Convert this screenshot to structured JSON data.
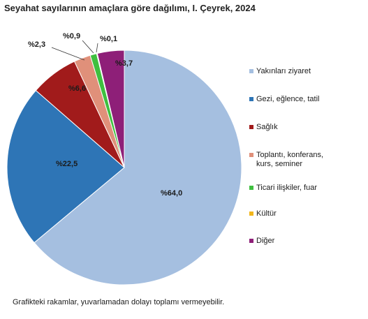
{
  "chart_data": {
    "type": "pie",
    "title": "Seyahat sayılarının amaçlara göre dağılımı, I. Çeyrek, 2024",
    "start_angle_deg": 0,
    "direction": "clockwise",
    "legend_position": "right",
    "slices": [
      {
        "name": "Yakınları ziyaret",
        "value": 64.0,
        "label": "%64,0",
        "color": "#a5bfe0"
      },
      {
        "name": "Gezi, eğlence, tatil",
        "value": 22.5,
        "label": "%22,5",
        "color": "#2e75b6"
      },
      {
        "name": "Sağlık",
        "value": 6.6,
        "label": "%6,6",
        "color": "#a11b1b"
      },
      {
        "name": "Toplantı, konferans,\nkurs, seminer",
        "value": 2.3,
        "label": "%2,3",
        "color": "#e0907a"
      },
      {
        "name": "Ticari ilişkiler, fuar",
        "value": 0.9,
        "label": "%0,9",
        "color": "#3fbf3f"
      },
      {
        "name": "Kültür",
        "value": 0.1,
        "label": "%0,1",
        "color": "#f2b61c"
      },
      {
        "name": "Diğer",
        "value": 3.7,
        "label": "%3,7",
        "color": "#8e1f78"
      }
    ]
  },
  "footnote": "Grafikteki rakamlar, yuvarlamadan dolayı toplamı vermeyebilir."
}
